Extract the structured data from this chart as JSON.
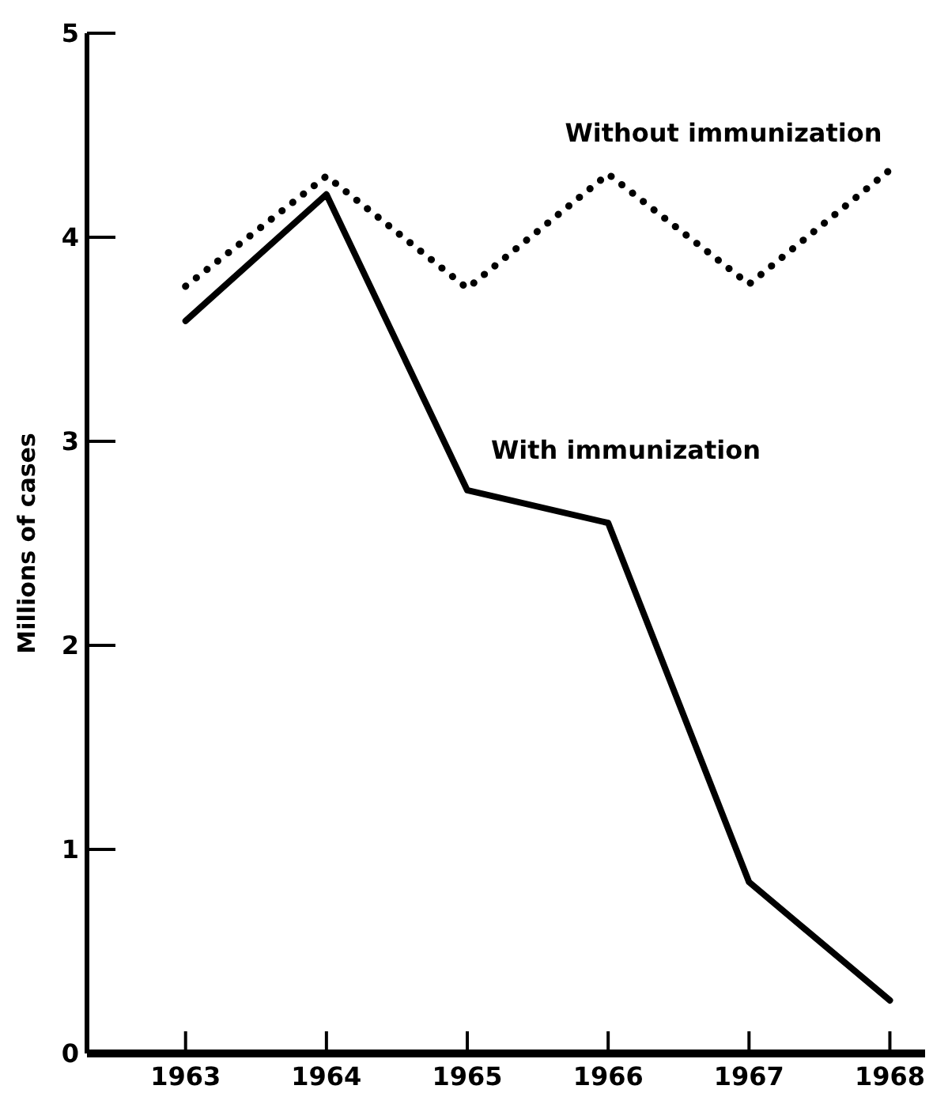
{
  "chart_data": {
    "type": "line",
    "x": [
      1963,
      1964,
      1965,
      1966,
      1967,
      1968
    ],
    "xlim": [
      1962.3,
      1968.25
    ],
    "xticks": [
      1963,
      1964,
      1965,
      1966,
      1967,
      1968
    ],
    "ylim": [
      0,
      5
    ],
    "yticks": [
      0,
      1,
      2,
      3,
      4,
      5
    ],
    "ylabel": "Millions of cases",
    "legend": false,
    "grid": false,
    "marker": "none",
    "series": [
      {
        "name": "Without immunization",
        "color": "#000000",
        "line_style": "dotted",
        "values": [
          3.76,
          4.3,
          3.75,
          4.31,
          3.77,
          4.33
        ]
      },
      {
        "name": "With immunization",
        "color": "#000000",
        "line_style": "solid",
        "values": [
          3.59,
          4.21,
          2.76,
          2.6,
          0.84,
          0.26
        ]
      }
    ]
  }
}
